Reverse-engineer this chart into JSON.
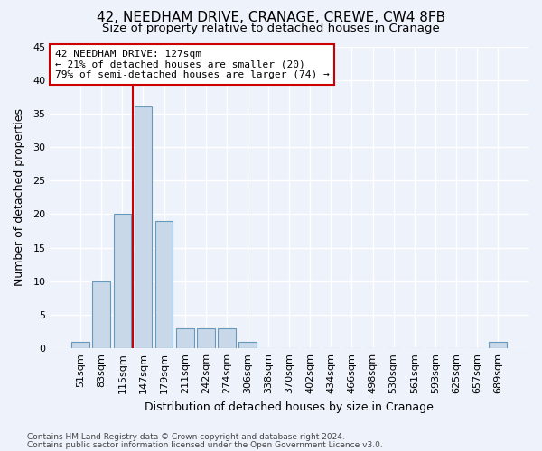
{
  "title1": "42, NEEDHAM DRIVE, CRANAGE, CREWE, CW4 8FB",
  "title2": "Size of property relative to detached houses in Cranage",
  "xlabel": "Distribution of detached houses by size in Cranage",
  "ylabel": "Number of detached properties",
  "categories": [
    "51sqm",
    "83sqm",
    "115sqm",
    "147sqm",
    "179sqm",
    "211sqm",
    "242sqm",
    "274sqm",
    "306sqm",
    "338sqm",
    "370sqm",
    "402sqm",
    "434sqm",
    "466sqm",
    "498sqm",
    "530sqm",
    "561sqm",
    "593sqm",
    "625sqm",
    "657sqm",
    "689sqm"
  ],
  "values": [
    1,
    10,
    20,
    36,
    19,
    3,
    3,
    3,
    1,
    0,
    0,
    0,
    0,
    0,
    0,
    0,
    0,
    0,
    0,
    0,
    1
  ],
  "bar_color": "#c8d8e8",
  "bar_edge_color": "#6699bb",
  "highlight_line_index": 2,
  "highlight_line_color": "#cc0000",
  "ylim": [
    0,
    45
  ],
  "yticks": [
    0,
    5,
    10,
    15,
    20,
    25,
    30,
    35,
    40,
    45
  ],
  "annotation_text": "42 NEEDHAM DRIVE: 127sqm\n← 21% of detached houses are smaller (20)\n79% of semi-detached houses are larger (74) →",
  "annotation_box_color": "white",
  "annotation_box_edge_color": "#cc0000",
  "footnote1": "Contains HM Land Registry data © Crown copyright and database right 2024.",
  "footnote2": "Contains public sector information licensed under the Open Government Licence v3.0.",
  "background_color": "#eef2fb",
  "grid_color": "white",
  "title1_fontsize": 11,
  "title2_fontsize": 9.5,
  "xlabel_fontsize": 9,
  "ylabel_fontsize": 9,
  "tick_fontsize": 8,
  "annotation_fontsize": 8,
  "footnote_fontsize": 6.5
}
